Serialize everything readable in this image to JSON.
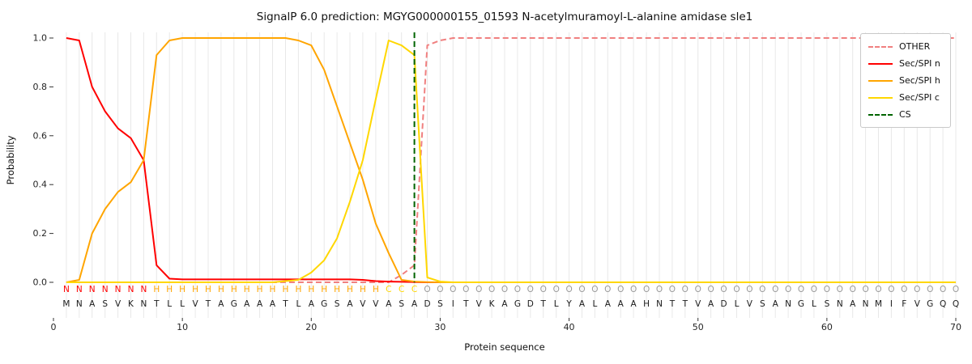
{
  "chart_data": {
    "type": "line",
    "title": "SignalP 6.0 prediction: MGYG000000155_01593 N-acetylmuramoyl-L-alanine amidase sle1",
    "xlabel": "Protein sequence",
    "ylabel": "Probability",
    "xlim": [
      0,
      70
    ],
    "ylim": [
      0.0,
      1.0
    ],
    "xticks": [
      0,
      10,
      20,
      30,
      40,
      50,
      60,
      70
    ],
    "yticks": [
      0.0,
      0.2,
      0.4,
      0.6,
      0.8,
      1.0
    ],
    "grid": "vertical",
    "legend_position": "upper right",
    "x": [
      1,
      2,
      3,
      4,
      5,
      6,
      7,
      8,
      9,
      10,
      11,
      12,
      13,
      14,
      15,
      16,
      17,
      18,
      19,
      20,
      21,
      22,
      23,
      24,
      25,
      26,
      27,
      28,
      29,
      30,
      31,
      32,
      33,
      34,
      35,
      36,
      37,
      38,
      39,
      40,
      41,
      42,
      43,
      44,
      45,
      46,
      47,
      48,
      49,
      50,
      51,
      52,
      53,
      54,
      55,
      56,
      57,
      58,
      59,
      60,
      61,
      62,
      63,
      64,
      65,
      66,
      67,
      68,
      69,
      70
    ],
    "series": [
      {
        "name": "OTHER",
        "color": "#f08080",
        "style": "dashed",
        "values": [
          0,
          0,
          0,
          0,
          0,
          0,
          0,
          0,
          0,
          0,
          0,
          0,
          0,
          0,
          0,
          0,
          0,
          0,
          0,
          0,
          0,
          0,
          0,
          0,
          0,
          0,
          0.03,
          0.07,
          0.97,
          0.99,
          1.0,
          1.0,
          1.0,
          1.0,
          1.0,
          1.0,
          1.0,
          1.0,
          1.0,
          1.0,
          1.0,
          1.0,
          1.0,
          1.0,
          1.0,
          1.0,
          1.0,
          1.0,
          1.0,
          1.0,
          1.0,
          1.0,
          1.0,
          1.0,
          1.0,
          1.0,
          1.0,
          1.0,
          1.0,
          1.0,
          1.0,
          1.0,
          1.0,
          1.0,
          1.0,
          1.0,
          1.0,
          1.0,
          1.0,
          1.0
        ]
      },
      {
        "name": "Sec/SPI n",
        "color": "#ff0000",
        "style": "solid",
        "values": [
          1.0,
          0.99,
          0.8,
          0.7,
          0.63,
          0.59,
          0.5,
          0.07,
          0.015,
          0.012,
          0.012,
          0.012,
          0.012,
          0.012,
          0.012,
          0.012,
          0.012,
          0.012,
          0.012,
          0.012,
          0.012,
          0.012,
          0.012,
          0.01,
          0.005,
          0.003,
          0.002,
          0.001,
          0,
          0,
          0,
          0,
          0,
          0,
          0,
          0,
          0,
          0,
          0,
          0,
          0,
          0,
          0,
          0,
          0,
          0,
          0,
          0,
          0,
          0,
          0,
          0,
          0,
          0,
          0,
          0,
          0,
          0,
          0,
          0,
          0,
          0,
          0,
          0,
          0,
          0,
          0,
          0,
          0,
          0
        ]
      },
      {
        "name": "Sec/SPI h",
        "color": "#ffa500",
        "style": "solid",
        "values": [
          0,
          0.01,
          0.2,
          0.3,
          0.37,
          0.41,
          0.5,
          0.93,
          0.99,
          1.0,
          1.0,
          1.0,
          1.0,
          1.0,
          1.0,
          1.0,
          1.0,
          1.0,
          0.99,
          0.97,
          0.87,
          0.72,
          0.57,
          0.42,
          0.24,
          0.12,
          0.01,
          0.003,
          0.001,
          0,
          0,
          0,
          0,
          0,
          0,
          0,
          0,
          0,
          0,
          0,
          0,
          0,
          0,
          0,
          0,
          0,
          0,
          0,
          0,
          0,
          0,
          0,
          0,
          0,
          0,
          0,
          0,
          0,
          0,
          0,
          0,
          0,
          0,
          0,
          0,
          0,
          0,
          0,
          0,
          0
        ]
      },
      {
        "name": "Sec/SPI c",
        "color": "#ffd700",
        "style": "solid",
        "values": [
          0,
          0,
          0,
          0,
          0,
          0,
          0,
          0,
          0,
          0,
          0,
          0,
          0,
          0,
          0,
          0,
          0,
          0.005,
          0.01,
          0.04,
          0.09,
          0.18,
          0.33,
          0.5,
          0.75,
          0.99,
          0.97,
          0.93,
          0.02,
          0.003,
          0,
          0,
          0,
          0,
          0,
          0,
          0,
          0,
          0,
          0,
          0,
          0,
          0,
          0,
          0,
          0,
          0,
          0,
          0,
          0,
          0,
          0,
          0,
          0,
          0,
          0,
          0,
          0,
          0,
          0,
          0,
          0,
          0,
          0,
          0,
          0,
          0,
          0,
          0,
          0
        ]
      }
    ],
    "cs_line": {
      "name": "CS",
      "x": 28,
      "color": "#006400",
      "style": "dashed"
    },
    "sequence": "MNASVKNTLLVTAGAAATLAGSAVVASADSITVKAGDTLYALAAAHNTTVADLVSANGLSNANMIFVGQQ",
    "regions": "NNNNNNNHHHHHHHHHHHHHHHHHHCCCOOOOOOOOOOOOOOOOOOOOOOOOOOOOOOOOOOOOOOOOOO",
    "region_colors": {
      "N": "#ff0000",
      "H": "#ffa500",
      "C": "#ffd700",
      "O": "#999999"
    },
    "sequence_color": "#1a1a1a"
  }
}
